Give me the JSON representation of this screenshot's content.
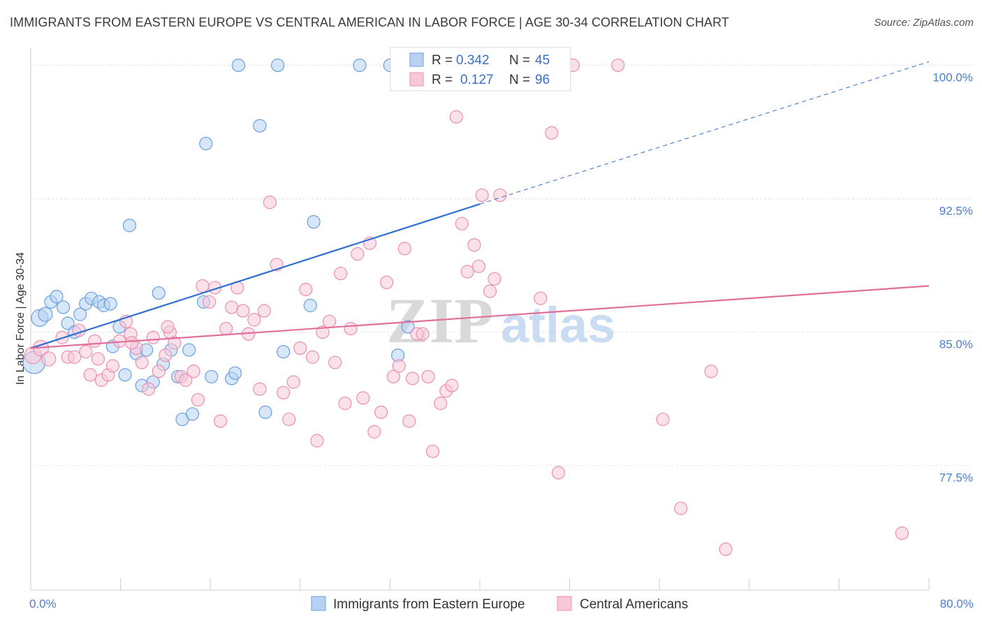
{
  "title": "IMMIGRANTS FROM EASTERN EUROPE VS CENTRAL AMERICAN IN LABOR FORCE | AGE 30-34 CORRELATION CHART",
  "source": "Source: ZipAtlas.com",
  "watermark": {
    "zip": "ZIP",
    "atlas": "atlas"
  },
  "chart_data": {
    "type": "scatter",
    "title": "IMMIGRANTS FROM EASTERN EUROPE VS CENTRAL AMERICAN IN LABOR FORCE | AGE 30-34 CORRELATION CHART",
    "xlabel": "",
    "ylabel": "In Labor Force | Age 30-34",
    "xlim": [
      0,
      80
    ],
    "ylim": [
      70.5,
      101
    ],
    "x_tick_labels": [
      {
        "value": 0,
        "label": "0.0%"
      },
      {
        "value": 80,
        "label": "80.0%"
      }
    ],
    "y_tick_labels": [
      {
        "value": 100,
        "label": "100.0%"
      },
      {
        "value": 92.5,
        "label": "92.5%"
      },
      {
        "value": 85,
        "label": "85.0%"
      },
      {
        "value": 77.5,
        "label": "77.5%"
      }
    ],
    "grid": true,
    "legend_position": "top-center",
    "legend": [
      {
        "r_label": "R =",
        "r_value": "0.342",
        "n_label": "N =",
        "n_value": "45"
      },
      {
        "r_label": "R =",
        "r_value": "0.127",
        "n_label": "N =",
        "n_value": "96"
      }
    ],
    "series": [
      {
        "name": "Immigrants from Eastern Europe",
        "color": "#6a9fe0",
        "fill": "#b7d1f2",
        "line_color": "#2e6fd0",
        "trend": {
          "x0": 0,
          "y0": 84.1,
          "x1": 40,
          "y1": 92.2,
          "dash_to_x": 80,
          "dash_to_y": 100.2
        },
        "points": [
          [
            0.3,
            83.3,
            16
          ],
          [
            0.8,
            85.8,
            12
          ],
          [
            1.3,
            86.0,
            10
          ],
          [
            1.8,
            86.7,
            9
          ],
          [
            2.3,
            87.0,
            9
          ],
          [
            2.9,
            86.4,
            9
          ],
          [
            3.3,
            85.5,
            9
          ],
          [
            3.9,
            85.0,
            9
          ],
          [
            4.4,
            86.0,
            9
          ],
          [
            4.9,
            86.6,
            9
          ],
          [
            5.4,
            86.9,
            9
          ],
          [
            6.1,
            86.7,
            9
          ],
          [
            6.5,
            86.5,
            9
          ],
          [
            7.1,
            86.6,
            9
          ],
          [
            7.3,
            84.2,
            9
          ],
          [
            7.9,
            85.3,
            9
          ],
          [
            8.4,
            82.6,
            9
          ],
          [
            8.8,
            91.0,
            9
          ],
          [
            9.4,
            83.8,
            9
          ],
          [
            9.9,
            82.0,
            9
          ],
          [
            10.3,
            84.0,
            9
          ],
          [
            10.9,
            82.2,
            9
          ],
          [
            11.4,
            87.2,
            9
          ],
          [
            11.8,
            83.2,
            9
          ],
          [
            12.5,
            84.0,
            9
          ],
          [
            13.1,
            82.5,
            9
          ],
          [
            13.5,
            80.1,
            9
          ],
          [
            14.1,
            84.0,
            9
          ],
          [
            14.4,
            80.4,
            9
          ],
          [
            15.4,
            86.7,
            9
          ],
          [
            15.6,
            95.6,
            9
          ],
          [
            16.1,
            82.5,
            9
          ],
          [
            17.9,
            82.4,
            9
          ],
          [
            18.2,
            82.7,
            9
          ],
          [
            18.5,
            100.0,
            9
          ],
          [
            20.4,
            96.6,
            9
          ],
          [
            20.9,
            80.5,
            9
          ],
          [
            22.0,
            100.0,
            9
          ],
          [
            22.5,
            83.9,
            9
          ],
          [
            24.9,
            86.5,
            9
          ],
          [
            25.2,
            91.2,
            9
          ],
          [
            29.3,
            100.0,
            9
          ],
          [
            32.0,
            100.0,
            9
          ],
          [
            32.7,
            83.7,
            9
          ],
          [
            33.6,
            85.3,
            9
          ]
        ]
      },
      {
        "name": "Central Americans",
        "color": "#ec8fb0",
        "fill": "#f8c8d8",
        "line_color": "#e0709a",
        "trend": {
          "x0": 0,
          "y0": 84.1,
          "x1": 80,
          "y1": 87.6
        },
        "points": [
          [
            0.2,
            83.7,
            12
          ],
          [
            0.9,
            84.1,
            11
          ],
          [
            1.6,
            83.5,
            10
          ],
          [
            2.8,
            84.7,
            9
          ],
          [
            3.3,
            83.6,
            9
          ],
          [
            3.9,
            83.6,
            9
          ],
          [
            4.3,
            85.1,
            9
          ],
          [
            4.9,
            83.9,
            9
          ],
          [
            5.3,
            82.6,
            9
          ],
          [
            5.7,
            84.5,
            9
          ],
          [
            6.3,
            82.3,
            9
          ],
          [
            6.9,
            82.6,
            9
          ],
          [
            7.3,
            83.1,
            9
          ],
          [
            7.9,
            84.5,
            9
          ],
          [
            8.5,
            85.6,
            9
          ],
          [
            8.9,
            84.9,
            9
          ],
          [
            9.4,
            84.1,
            9
          ],
          [
            9.9,
            83.3,
            9
          ],
          [
            10.5,
            81.8,
            9
          ],
          [
            10.9,
            84.7,
            9
          ],
          [
            11.4,
            82.8,
            9
          ],
          [
            12.0,
            83.7,
            9
          ],
          [
            12.4,
            85.0,
            9
          ],
          [
            12.8,
            84.4,
            9
          ],
          [
            13.4,
            82.5,
            9
          ],
          [
            13.8,
            82.3,
            9
          ],
          [
            14.5,
            82.8,
            9
          ],
          [
            14.9,
            81.2,
            9
          ],
          [
            15.3,
            87.6,
            9
          ],
          [
            15.9,
            86.7,
            9
          ],
          [
            16.4,
            87.5,
            9
          ],
          [
            16.9,
            80.0,
            9
          ],
          [
            17.4,
            85.2,
            9
          ],
          [
            17.9,
            86.4,
            9
          ],
          [
            18.4,
            87.5,
            9
          ],
          [
            18.9,
            86.2,
            9
          ],
          [
            19.4,
            84.9,
            9
          ],
          [
            19.9,
            85.7,
            9
          ],
          [
            20.4,
            81.8,
            9
          ],
          [
            20.8,
            86.2,
            9
          ],
          [
            21.3,
            92.3,
            9
          ],
          [
            21.9,
            88.8,
            9
          ],
          [
            22.5,
            81.6,
            9
          ],
          [
            23.0,
            80.1,
            9
          ],
          [
            23.4,
            82.2,
            9
          ],
          [
            24.0,
            84.1,
            9
          ],
          [
            24.5,
            87.4,
            9
          ],
          [
            25.1,
            83.6,
            9
          ],
          [
            25.5,
            78.9,
            9
          ],
          [
            26.0,
            85.0,
            9
          ],
          [
            26.6,
            85.6,
            9
          ],
          [
            27.1,
            83.3,
            9
          ],
          [
            27.6,
            88.3,
            9
          ],
          [
            28.0,
            81.0,
            9
          ],
          [
            28.5,
            85.2,
            9
          ],
          [
            29.1,
            89.4,
            9
          ],
          [
            29.6,
            81.3,
            9
          ],
          [
            30.2,
            90.0,
            9
          ],
          [
            30.6,
            79.4,
            9
          ],
          [
            31.2,
            80.5,
            9
          ],
          [
            31.7,
            87.8,
            9
          ],
          [
            32.3,
            82.5,
            9
          ],
          [
            32.8,
            83.1,
            9
          ],
          [
            33.3,
            89.7,
            9
          ],
          [
            33.7,
            80.0,
            9
          ],
          [
            34.4,
            84.9,
            9
          ],
          [
            34.9,
            84.9,
            9
          ],
          [
            35.4,
            82.5,
            9
          ],
          [
            35.8,
            78.3,
            9
          ],
          [
            36.5,
            81.0,
            9
          ],
          [
            37.0,
            81.7,
            9
          ],
          [
            37.5,
            82.0,
            9
          ],
          [
            37.9,
            97.1,
            9
          ],
          [
            38.4,
            91.1,
            9
          ],
          [
            38.9,
            88.4,
            9
          ],
          [
            39.5,
            89.9,
            9
          ],
          [
            39.9,
            88.7,
            9
          ],
          [
            40.2,
            92.7,
            9
          ],
          [
            40.9,
            87.3,
            9
          ],
          [
            41.3,
            88.0,
            9
          ],
          [
            41.8,
            92.7,
            9
          ],
          [
            42.9,
            100.0,
            9
          ],
          [
            45.4,
            86.9,
            9
          ],
          [
            46.4,
            96.2,
            9
          ],
          [
            47.0,
            77.1,
            9
          ],
          [
            48.3,
            100.0,
            9
          ],
          [
            52.3,
            100.0,
            9
          ],
          [
            56.3,
            80.1,
            9
          ],
          [
            57.9,
            75.1,
            9
          ],
          [
            60.6,
            82.8,
            9
          ],
          [
            61.9,
            72.8,
            9
          ],
          [
            77.6,
            73.7,
            9
          ],
          [
            34.0,
            82.4,
            9
          ],
          [
            12.2,
            85.3,
            9
          ],
          [
            9.0,
            84.4,
            9
          ],
          [
            6.0,
            83.5,
            9
          ]
        ]
      }
    ]
  }
}
